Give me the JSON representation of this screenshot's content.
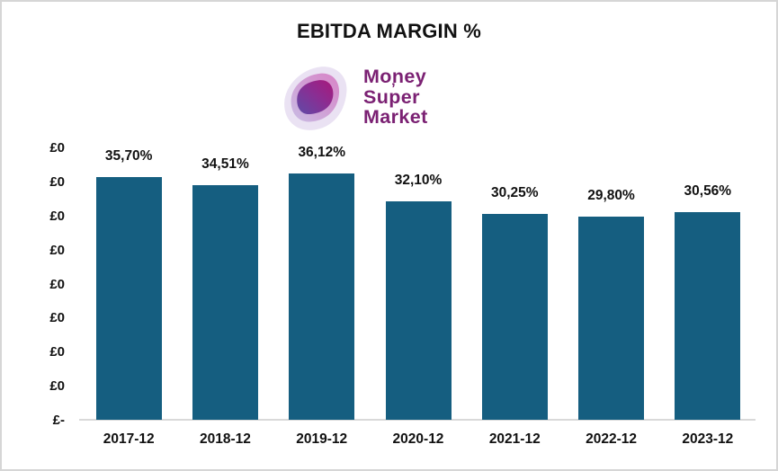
{
  "header": {
    "title": "EBITDA MARGIN %"
  },
  "logo": {
    "lines": [
      "Money",
      "Super",
      "Market"
    ],
    "flick": "’",
    "text_color": "#7B2173",
    "blob_outer_color": "#EAE2F3",
    "blob_mid_color_from": "#C9BCE4",
    "blob_mid_color_to": "#D883C6",
    "blob_inner_color_from": "#5F4BA7",
    "blob_inner_color_to": "#A8197B"
  },
  "chart_data": {
    "type": "bar",
    "title": "EBITDA MARGIN %",
    "categories": [
      "2017-12",
      "2018-12",
      "2019-12",
      "2020-12",
      "2021-12",
      "2022-12",
      "2023-12"
    ],
    "values": [
      35.7,
      34.51,
      36.12,
      32.1,
      30.25,
      29.8,
      30.56
    ],
    "value_labels": [
      "35,70%",
      "34,51%",
      "36,12%",
      "32,10%",
      "30,25%",
      "29,80%",
      "30,56%"
    ],
    "unit": "percent",
    "xlabel": "",
    "ylabel": "",
    "y_axis": {
      "tick_labels_top_to_bottom": [
        "£0",
        "£0",
        "£0",
        "£0",
        "£0",
        "£0",
        "£0",
        "£0",
        "£-"
      ],
      "implied_value_range_percent": [
        0,
        40
      ],
      "gridlines": false
    },
    "legend": "none",
    "bar_color": "#155E80",
    "axis_line_color": "#D9D9D9",
    "label_color": "#111111"
  }
}
